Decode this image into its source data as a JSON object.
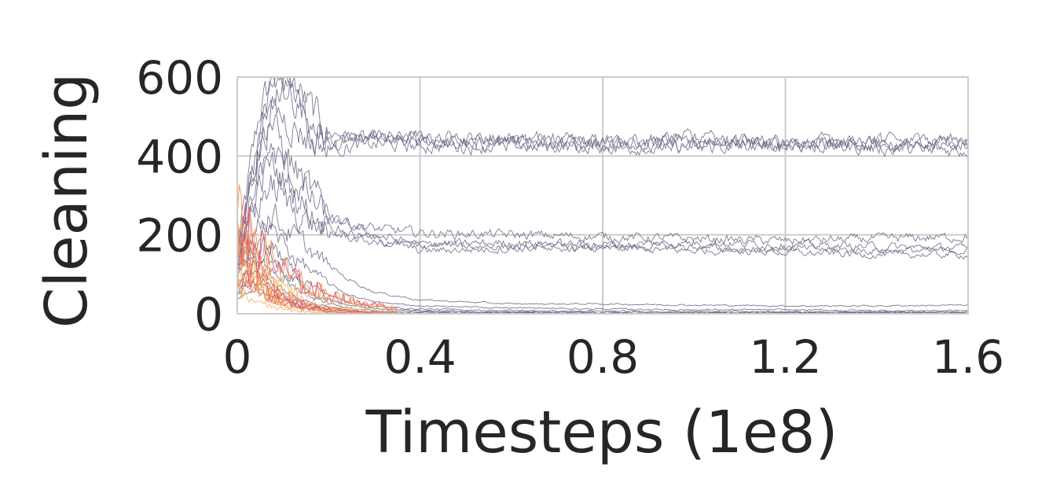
{
  "chart_data": {
    "type": "line",
    "title": "",
    "xlabel": "Timesteps (1e8)",
    "ylabel": "Cleaning",
    "xlim": [
      0,
      1.6
    ],
    "ylim": [
      0,
      600
    ],
    "xticks": [
      0,
      0.4,
      0.8,
      1.2,
      1.6
    ],
    "xtick_labels": [
      "0",
      "0.4",
      "0.8",
      "1.2",
      "1.6"
    ],
    "yticks": [
      0,
      200,
      400,
      600
    ],
    "ytick_labels": [
      "0",
      "200",
      "400",
      "600"
    ],
    "grid": true,
    "legend": "none",
    "colors": {
      "line": "#6e6a88",
      "grid": "#cccccc",
      "spine": "#cccccc",
      "text": "#262626",
      "early_highlight": [
        "#f0884a",
        "#e0506a",
        "#f3b25c"
      ]
    },
    "series": [
      {
        "points": [
          [
            0,
            160
          ],
          [
            0.02,
            300
          ],
          [
            0.05,
            520
          ],
          [
            0.08,
            600
          ],
          [
            0.12,
            560
          ],
          [
            0.16,
            480
          ],
          [
            0.2,
            440
          ],
          [
            0.3,
            445
          ],
          [
            0.4,
            440
          ],
          [
            0.6,
            440
          ],
          [
            0.8,
            435
          ],
          [
            1.0,
            440
          ],
          [
            1.2,
            435
          ],
          [
            1.4,
            430
          ],
          [
            1.6,
            440
          ]
        ]
      },
      {
        "points": [
          [
            0,
            120
          ],
          [
            0.02,
            260
          ],
          [
            0.05,
            460
          ],
          [
            0.08,
            560
          ],
          [
            0.12,
            590
          ],
          [
            0.16,
            520
          ],
          [
            0.2,
            460
          ],
          [
            0.3,
            440
          ],
          [
            0.4,
            435
          ],
          [
            0.6,
            430
          ],
          [
            0.8,
            440
          ],
          [
            1.0,
            430
          ],
          [
            1.2,
            440
          ],
          [
            1.4,
            425
          ],
          [
            1.6,
            425
          ]
        ]
      },
      {
        "points": [
          [
            0,
            140
          ],
          [
            0.03,
            320
          ],
          [
            0.06,
            540
          ],
          [
            0.09,
            600
          ],
          [
            0.13,
            540
          ],
          [
            0.17,
            460
          ],
          [
            0.22,
            430
          ],
          [
            0.3,
            450
          ],
          [
            0.4,
            445
          ],
          [
            0.6,
            445
          ],
          [
            0.8,
            430
          ],
          [
            1.0,
            445
          ],
          [
            1.2,
            425
          ],
          [
            1.4,
            435
          ],
          [
            1.6,
            445
          ]
        ]
      },
      {
        "points": [
          [
            0,
            100
          ],
          [
            0.02,
            240
          ],
          [
            0.05,
            420
          ],
          [
            0.08,
            520
          ],
          [
            0.12,
            480
          ],
          [
            0.16,
            440
          ],
          [
            0.22,
            420
          ],
          [
            0.3,
            430
          ],
          [
            0.4,
            425
          ],
          [
            0.6,
            425
          ],
          [
            0.8,
            425
          ],
          [
            1.0,
            420
          ],
          [
            1.2,
            430
          ],
          [
            1.4,
            420
          ],
          [
            1.6,
            415
          ]
        ]
      },
      {
        "points": [
          [
            0,
            180
          ],
          [
            0.03,
            360
          ],
          [
            0.07,
            500
          ],
          [
            0.1,
            420
          ],
          [
            0.14,
            340
          ],
          [
            0.18,
            280
          ],
          [
            0.22,
            240
          ],
          [
            0.3,
            215
          ],
          [
            0.4,
            205
          ],
          [
            0.6,
            200
          ],
          [
            0.8,
            195
          ],
          [
            1.0,
            190
          ],
          [
            1.2,
            185
          ],
          [
            1.4,
            190
          ],
          [
            1.6,
            195
          ]
        ]
      },
      {
        "points": [
          [
            0,
            150
          ],
          [
            0.03,
            300
          ],
          [
            0.07,
            420
          ],
          [
            0.11,
            360
          ],
          [
            0.15,
            300
          ],
          [
            0.2,
            240
          ],
          [
            0.3,
            200
          ],
          [
            0.4,
            175
          ],
          [
            0.6,
            170
          ],
          [
            0.8,
            165
          ],
          [
            1.0,
            160
          ],
          [
            1.2,
            165
          ],
          [
            1.4,
            160
          ],
          [
            1.6,
            160
          ]
        ]
      },
      {
        "points": [
          [
            0,
            130
          ],
          [
            0.03,
            260
          ],
          [
            0.07,
            380
          ],
          [
            0.11,
            330
          ],
          [
            0.15,
            270
          ],
          [
            0.2,
            220
          ],
          [
            0.3,
            190
          ],
          [
            0.4,
            160
          ],
          [
            0.6,
            165
          ],
          [
            0.8,
            170
          ],
          [
            1.0,
            170
          ],
          [
            1.2,
            155
          ],
          [
            1.4,
            150
          ],
          [
            1.6,
            150
          ]
        ]
      },
      {
        "points": [
          [
            0,
            120
          ],
          [
            0.03,
            240
          ],
          [
            0.07,
            330
          ],
          [
            0.11,
            280
          ],
          [
            0.16,
            230
          ],
          [
            0.22,
            200
          ],
          [
            0.3,
            180
          ],
          [
            0.4,
            175
          ],
          [
            0.6,
            180
          ],
          [
            0.8,
            175
          ],
          [
            1.0,
            180
          ],
          [
            1.2,
            175
          ],
          [
            1.4,
            170
          ],
          [
            1.6,
            165
          ]
        ]
      },
      {
        "points": [
          [
            0,
            110
          ],
          [
            0.03,
            200
          ],
          [
            0.07,
            260
          ],
          [
            0.12,
            200
          ],
          [
            0.18,
            140
          ],
          [
            0.24,
            90
          ],
          [
            0.3,
            55
          ],
          [
            0.4,
            35
          ],
          [
            0.6,
            25
          ],
          [
            0.8,
            25
          ],
          [
            1.0,
            22
          ],
          [
            1.2,
            20
          ],
          [
            1.4,
            20
          ],
          [
            1.6,
            22
          ]
        ]
      },
      {
        "points": [
          [
            0,
            100
          ],
          [
            0.03,
            180
          ],
          [
            0.07,
            220
          ],
          [
            0.12,
            150
          ],
          [
            0.18,
            90
          ],
          [
            0.24,
            50
          ],
          [
            0.3,
            30
          ],
          [
            0.4,
            20
          ],
          [
            0.6,
            15
          ],
          [
            0.8,
            12
          ],
          [
            1.0,
            10
          ],
          [
            1.2,
            10
          ],
          [
            1.4,
            8
          ],
          [
            1.6,
            8
          ]
        ]
      },
      {
        "points": [
          [
            0,
            90
          ],
          [
            0.03,
            160
          ],
          [
            0.07,
            180
          ],
          [
            0.12,
            110
          ],
          [
            0.18,
            60
          ],
          [
            0.24,
            30
          ],
          [
            0.3,
            18
          ],
          [
            0.4,
            12
          ],
          [
            0.6,
            8
          ],
          [
            0.8,
            6
          ],
          [
            1.0,
            6
          ],
          [
            1.2,
            5
          ],
          [
            1.4,
            5
          ],
          [
            1.6,
            5
          ]
        ]
      },
      {
        "points": [
          [
            0,
            80
          ],
          [
            0.03,
            140
          ],
          [
            0.07,
            150
          ],
          [
            0.12,
            90
          ],
          [
            0.18,
            45
          ],
          [
            0.24,
            22
          ],
          [
            0.3,
            12
          ],
          [
            0.4,
            8
          ],
          [
            0.6,
            5
          ],
          [
            0.8,
            4
          ],
          [
            1.0,
            3
          ],
          [
            1.2,
            3
          ],
          [
            1.4,
            3
          ],
          [
            1.6,
            3
          ]
        ]
      },
      {
        "points": [
          [
            0,
            70
          ],
          [
            0.03,
            120
          ],
          [
            0.07,
            120
          ],
          [
            0.12,
            70
          ],
          [
            0.18,
            35
          ],
          [
            0.24,
            15
          ],
          [
            0.3,
            8
          ],
          [
            0.4,
            5
          ],
          [
            0.6,
            3
          ],
          [
            0.8,
            2
          ],
          [
            1.0,
            2
          ],
          [
            1.2,
            2
          ],
          [
            1.4,
            2
          ],
          [
            1.6,
            2
          ]
        ]
      },
      {
        "points": [
          [
            0,
            60
          ],
          [
            0.03,
            100
          ],
          [
            0.07,
            90
          ],
          [
            0.12,
            50
          ],
          [
            0.18,
            25
          ],
          [
            0.24,
            10
          ],
          [
            0.3,
            5
          ],
          [
            0.4,
            3
          ],
          [
            0.6,
            2
          ],
          [
            0.8,
            1
          ],
          [
            1.0,
            1
          ],
          [
            1.2,
            1
          ],
          [
            1.4,
            1
          ],
          [
            1.6,
            1
          ]
        ]
      },
      {
        "points": [
          [
            0,
            50
          ],
          [
            0.03,
            80
          ],
          [
            0.07,
            70
          ],
          [
            0.12,
            35
          ],
          [
            0.18,
            15
          ],
          [
            0.24,
            6
          ],
          [
            0.3,
            3
          ],
          [
            0.4,
            2
          ],
          [
            0.6,
            1
          ],
          [
            0.8,
            1
          ],
          [
            1.0,
            1
          ],
          [
            1.2,
            1
          ],
          [
            1.4,
            1
          ],
          [
            1.6,
            1
          ]
        ]
      },
      {
        "points": [
          [
            0,
            40
          ],
          [
            0.03,
            60
          ],
          [
            0.07,
            50
          ],
          [
            0.12,
            25
          ],
          [
            0.18,
            10
          ],
          [
            0.24,
            4
          ],
          [
            0.3,
            2
          ],
          [
            0.4,
            1
          ],
          [
            0.6,
            1
          ],
          [
            0.8,
            0
          ],
          [
            1.0,
            0
          ],
          [
            1.2,
            0
          ],
          [
            1.4,
            0
          ],
          [
            1.6,
            0
          ]
        ]
      }
    ]
  }
}
